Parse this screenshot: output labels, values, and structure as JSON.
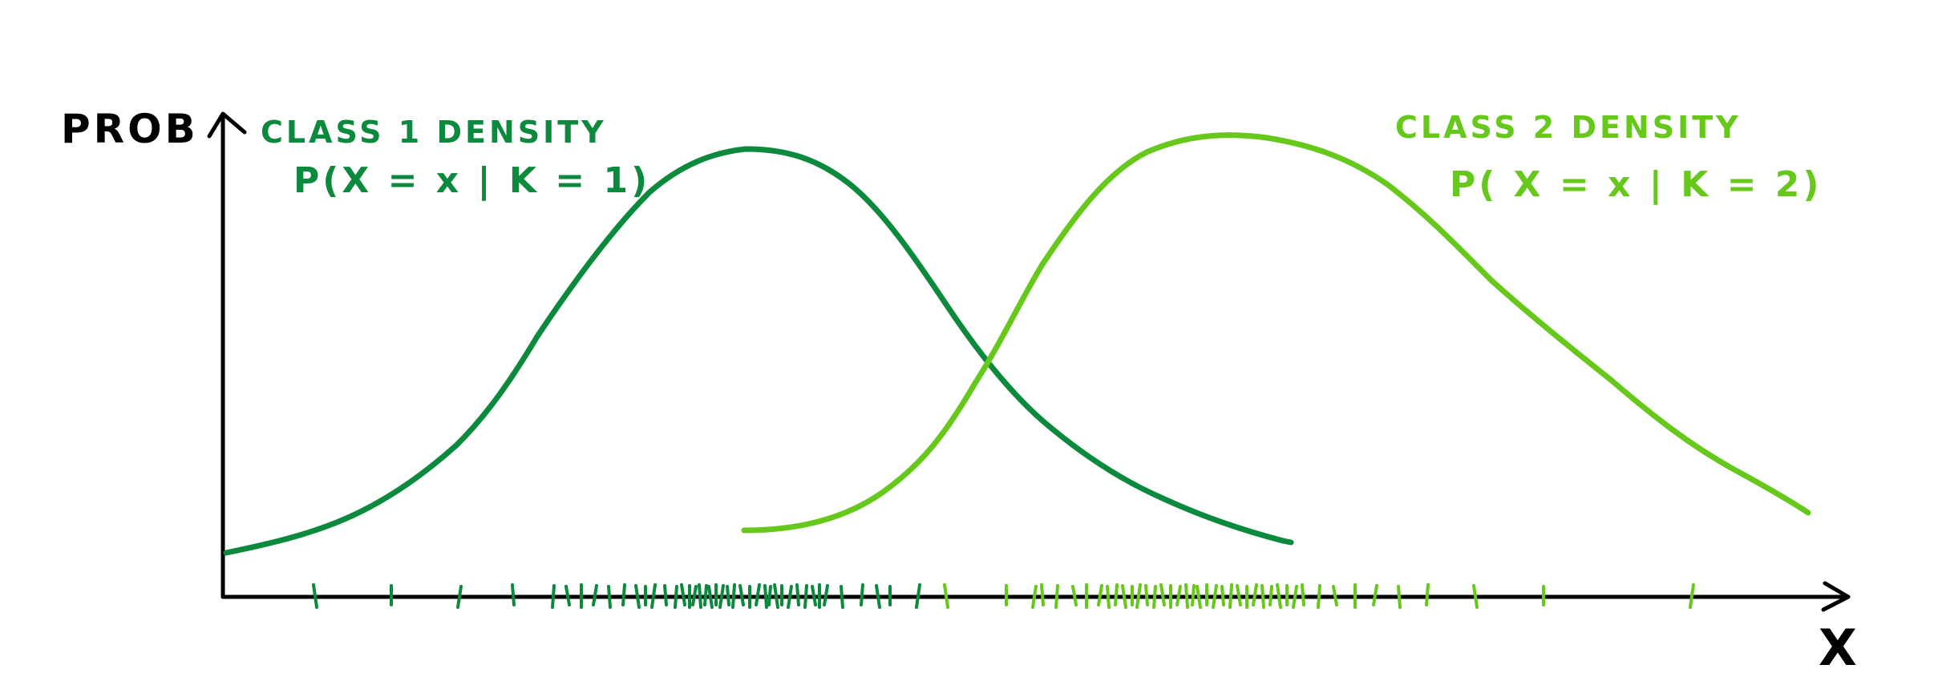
{
  "diagram": {
    "y_axis_label": "PROB",
    "x_axis_label": "X",
    "class1": {
      "title": "CLASS 1 DENSITY",
      "formula": "P(X = x | K = 1)",
      "color": "#0b8a3e"
    },
    "class2": {
      "title": "CLASS 2 DENSITY",
      "formula": "P( X = x | K = 2)",
      "color": "#66c81a"
    },
    "axis_color": "#000000"
  }
}
